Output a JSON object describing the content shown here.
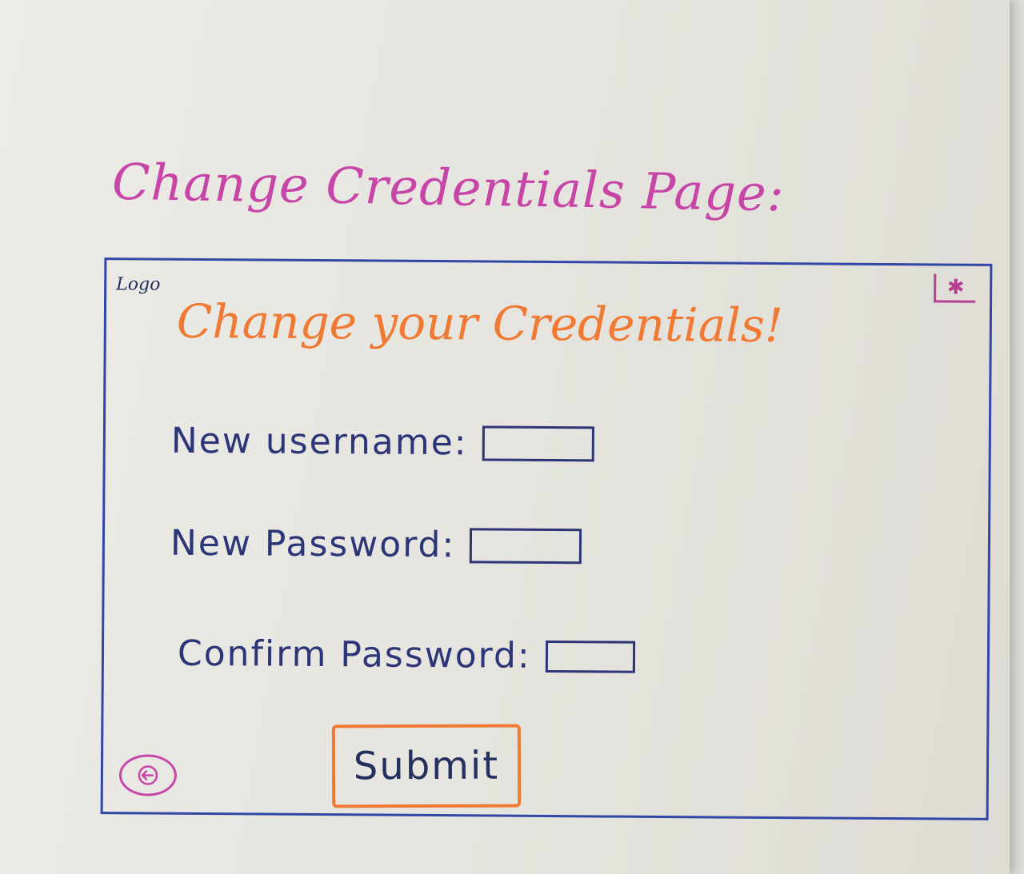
{
  "page": {
    "heading": "Change Credentials Page:"
  },
  "header": {
    "logo_text": "Logo",
    "fav_icon": "star-icon"
  },
  "form": {
    "title": "Change your Credentials!",
    "fields": [
      {
        "label": "New username:",
        "value": ""
      },
      {
        "label": "New Password:",
        "value": ""
      },
      {
        "label": "Confirm Password:",
        "value": ""
      }
    ],
    "submit_label": "Submit"
  },
  "footer": {
    "back_icon": "arrow-left-icon"
  },
  "colors": {
    "heading": "#c845a8",
    "frame": "#3146a6",
    "title": "#f07a33",
    "label": "#2c3577",
    "submit_border": "#f07a33",
    "back_icon": "#c845a8"
  }
}
